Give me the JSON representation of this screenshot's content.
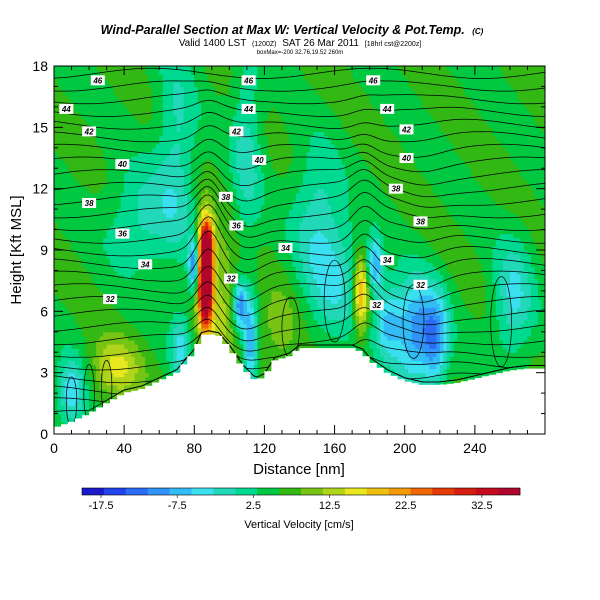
{
  "chart_data": {
    "type": "heatmap",
    "title": "Wind-Parallel Section at Max W: Vertical Velocity & Pot.Temp.",
    "title_mark": "(C)",
    "subtitle_line1_main": "Valid 1400 LST",
    "subtitle_line1_small": "(1200Z)",
    "subtitle_line1_date": "SAT 26 Mar 2011",
    "subtitle_line1_tail": "[18hrl cst@2200z]",
    "subtitle_line2": "boxMax=-200 32.76,19.52 260m",
    "xlabel": "Distance [nm]",
    "ylabel": "Height [Kft MSL]",
    "xlim": [
      0,
      280
    ],
    "ylim": [
      0,
      18
    ],
    "x_ticks": [
      0,
      40,
      80,
      120,
      160,
      200,
      240
    ],
    "y_ticks": [
      0,
      3,
      6,
      9,
      12,
      15,
      18
    ],
    "colorbar": {
      "label": "Vertical Velocity [cm/s]",
      "min": -20,
      "max": 37.5,
      "step": 2.5,
      "tick_labels": [
        "-17.5",
        "-7.5",
        "2.5",
        "12.5",
        "22.5",
        "32.5"
      ],
      "colors": [
        "#1a1acc",
        "#2244ee",
        "#2a6cf5",
        "#2f94f5",
        "#33bbf5",
        "#3be0f0",
        "#22d8b8",
        "#00d990",
        "#00c840",
        "#33b814",
        "#77c414",
        "#b0d41a",
        "#e8e820",
        "#f0c010",
        "#f29a08",
        "#ef6606",
        "#e43a06",
        "#d61e10",
        "#c40c1e",
        "#b0062c"
      ]
    },
    "theta_contour_labels": [
      "32",
      "34",
      "36",
      "38",
      "40",
      "42",
      "44",
      "46"
    ],
    "labels_theta": [
      {
        "t": "46",
        "x": 25,
        "y": 17.3
      },
      {
        "t": "46",
        "x": 111,
        "y": 17.3
      },
      {
        "t": "46",
        "x": 182,
        "y": 17.3
      },
      {
        "t": "44",
        "x": 7,
        "y": 15.9
      },
      {
        "t": "44",
        "x": 111,
        "y": 15.9
      },
      {
        "t": "44",
        "x": 190,
        "y": 15.9
      },
      {
        "t": "42",
        "x": 20,
        "y": 14.8
      },
      {
        "t": "42",
        "x": 104,
        "y": 14.8
      },
      {
        "t": "42",
        "x": 201,
        "y": 14.9
      },
      {
        "t": "40",
        "x": 39,
        "y": 13.2
      },
      {
        "t": "40",
        "x": 117,
        "y": 13.4
      },
      {
        "t": "40",
        "x": 201,
        "y": 13.5
      },
      {
        "t": "38",
        "x": 20,
        "y": 11.3
      },
      {
        "t": "38",
        "x": 98,
        "y": 11.6
      },
      {
        "t": "38",
        "x": 195,
        "y": 12.0
      },
      {
        "t": "38",
        "x": 209,
        "y": 10.4
      },
      {
        "t": "36",
        "x": 39,
        "y": 9.8
      },
      {
        "t": "36",
        "x": 104,
        "y": 10.2
      },
      {
        "t": "34",
        "x": 52,
        "y": 8.3
      },
      {
        "t": "34",
        "x": 132,
        "y": 9.1
      },
      {
        "t": "34",
        "x": 190,
        "y": 8.5
      },
      {
        "t": "32",
        "x": 32,
        "y": 6.6
      },
      {
        "t": "32",
        "x": 101,
        "y": 7.6
      },
      {
        "t": "32",
        "x": 209,
        "y": 7.3
      },
      {
        "t": "32",
        "x": 184,
        "y": 6.3
      }
    ],
    "terrain": [
      [
        0,
        0.3
      ],
      [
        10,
        0.6
      ],
      [
        20,
        1.0
      ],
      [
        30,
        1.5
      ],
      [
        40,
        2.0
      ],
      [
        50,
        2.2
      ],
      [
        60,
        2.6
      ],
      [
        70,
        3.0
      ],
      [
        75,
        3.5
      ],
      [
        80,
        4.0
      ],
      [
        84,
        4.8
      ],
      [
        88,
        4.9
      ],
      [
        94,
        4.8
      ],
      [
        100,
        4.2
      ],
      [
        108,
        3.2
      ],
      [
        115,
        2.6
      ],
      [
        120,
        2.8
      ],
      [
        126,
        3.6
      ],
      [
        134,
        3.8
      ],
      [
        140,
        4.2
      ],
      [
        150,
        4.2
      ],
      [
        160,
        4.2
      ],
      [
        170,
        4.2
      ],
      [
        176,
        4.0
      ],
      [
        180,
        3.6
      ],
      [
        190,
        3.0
      ],
      [
        200,
        2.6
      ],
      [
        210,
        2.4
      ],
      [
        220,
        2.4
      ],
      [
        230,
        2.5
      ],
      [
        240,
        2.7
      ],
      [
        250,
        2.9
      ],
      [
        260,
        3.1
      ],
      [
        270,
        3.2
      ],
      [
        280,
        3.2
      ]
    ],
    "w_features": [
      {
        "x": 86,
        "y": 8.0,
        "sx": 3.0,
        "sy": 1.7,
        "a": 34
      },
      {
        "x": 87,
        "y": 6.6,
        "sx": 2.5,
        "sy": 1.2,
        "a": 10
      },
      {
        "x": 88,
        "y": 9.3,
        "sx": 2.6,
        "sy": 0.8,
        "a": 12
      },
      {
        "x": 80,
        "y": 8.2,
        "sx": 2.2,
        "sy": 0.9,
        "a": -16
      },
      {
        "x": 106,
        "y": 6.3,
        "sx": 2.6,
        "sy": 0.8,
        "a": -14
      },
      {
        "x": 112,
        "y": 4.4,
        "sx": 2.8,
        "sy": 1.6,
        "a": -12
      },
      {
        "x": 96,
        "y": 6.5,
        "sx": 6.0,
        "sy": 2.2,
        "a": 6
      },
      {
        "x": 160,
        "y": 7.6,
        "sx": 12.0,
        "sy": 2.0,
        "a": -7
      },
      {
        "x": 175,
        "y": 6.8,
        "sx": 3.0,
        "sy": 1.3,
        "a": 15
      },
      {
        "x": 183,
        "y": 8.3,
        "sx": 3.0,
        "sy": 0.9,
        "a": -12
      },
      {
        "x": 206,
        "y": 5.0,
        "sx": 9.0,
        "sy": 1.8,
        "a": -14
      },
      {
        "x": 218,
        "y": 4.6,
        "sx": 5.0,
        "sy": 1.6,
        "a": -10
      },
      {
        "x": 190,
        "y": 5.5,
        "sx": 5.0,
        "sy": 1.2,
        "a": -9
      },
      {
        "x": 262,
        "y": 6.6,
        "sx": 8.0,
        "sy": 2.0,
        "a": -8
      },
      {
        "x": 128,
        "y": 5.0,
        "sx": 8.0,
        "sy": 1.5,
        "a": 4
      },
      {
        "x": 72,
        "y": 4.3,
        "sx": 4.0,
        "sy": 1.2,
        "a": -8
      },
      {
        "x": 50,
        "y": 10.5,
        "sx": 14.0,
        "sy": 1.8,
        "a": -6
      },
      {
        "x": 150,
        "y": 11.0,
        "sx": 10.0,
        "sy": 2.2,
        "a": -6
      },
      {
        "x": 70,
        "y": 14.0,
        "sx": 8.0,
        "sy": 3.5,
        "a": -6
      },
      {
        "x": 110,
        "y": 14.0,
        "sx": 6.0,
        "sy": 3.5,
        "a": -6
      },
      {
        "x": 10,
        "y": 2.0,
        "sx": 6.0,
        "sy": 1.2,
        "a": -10
      },
      {
        "x": 35,
        "y": 3.2,
        "sx": 10.0,
        "sy": 1.0,
        "a": 8
      }
    ]
  }
}
